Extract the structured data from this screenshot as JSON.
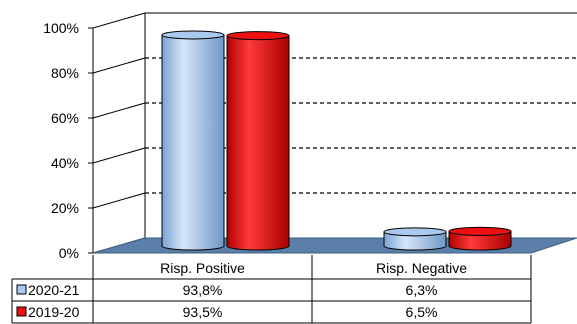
{
  "chart_data": {
    "type": "bar",
    "categories": [
      "Risp. Positive",
      "Risp. Negative"
    ],
    "series": [
      {
        "name": "2020-21",
        "values": [
          93.8,
          6.3
        ],
        "labels": [
          "93,8%",
          "6,3%"
        ],
        "color": "#a9c9ef"
      },
      {
        "name": "2019-20",
        "values": [
          93.5,
          6.5
        ],
        "labels": [
          "93,5%",
          "6,5%"
        ],
        "color": "#ee1111"
      }
    ],
    "y_ticks": [
      "0%",
      "20%",
      "40%",
      "60%",
      "80%",
      "100%"
    ],
    "ylim": [
      0,
      100
    ],
    "grid": "dashed",
    "legend": "data-table-below",
    "floor_color": "#5b7fa8"
  }
}
